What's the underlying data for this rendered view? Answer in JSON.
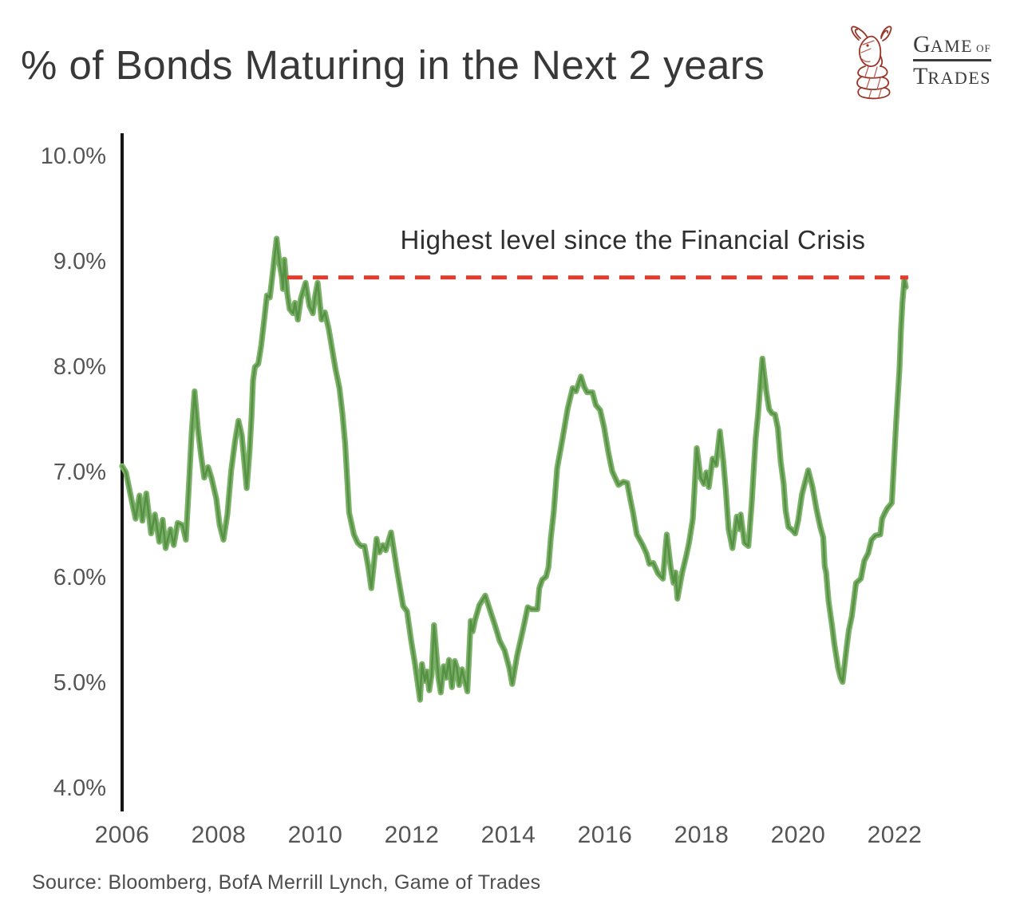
{
  "header": {
    "title": "% of Bonds Maturing in the Next 2 years"
  },
  "logo": {
    "word1_cap": "G",
    "word1_rest": "AME",
    "word_of": "OF",
    "word2_cap": "T",
    "word2_rest": "RADES",
    "bull_color": "#9a3528"
  },
  "annotation": {
    "text": "Highest level since the Financial Crisis"
  },
  "source": {
    "text": "Source: Bloomberg, BofA Merrill Lynch, Game of Trades"
  },
  "colors": {
    "line_outer": "#7ab167",
    "line_core": "#569146",
    "threshold_red": "#e23b2b",
    "axis": "#151515",
    "tick_text": "#555555"
  },
  "chart_data": {
    "type": "line",
    "title": "% of Bonds Maturing in the Next 2 years",
    "xlabel": "",
    "ylabel": "",
    "grid": false,
    "legend": "none",
    "xlim": [
      2006,
      2022.45
    ],
    "ylim": [
      3.8,
      10.2
    ],
    "x_ticks": [
      {
        "year": 2006,
        "label": "2006"
      },
      {
        "year": 2008,
        "label": "2008"
      },
      {
        "year": 2010,
        "label": "2010"
      },
      {
        "year": 2012,
        "label": "2012"
      },
      {
        "year": 2014,
        "label": "2014"
      },
      {
        "year": 2016,
        "label": "2016"
      },
      {
        "year": 2018,
        "label": "2018"
      },
      {
        "year": 2020,
        "label": "2020"
      },
      {
        "year": 2022,
        "label": "2022"
      }
    ],
    "y_ticks": [
      {
        "value": 10.0,
        "label": "10.0%"
      },
      {
        "value": 9.0,
        "label": "9.0%"
      },
      {
        "value": 8.0,
        "label": "8.0%"
      },
      {
        "value": 7.0,
        "label": "7.0%"
      },
      {
        "value": 6.0,
        "label": "6.0%"
      },
      {
        "value": 5.0,
        "label": "5.0%"
      },
      {
        "value": 4.0,
        "label": "4.0%"
      }
    ],
    "annotation_line": {
      "text": "Highest level since the Financial Crisis",
      "value": 8.85,
      "x_start": 2009.42,
      "x_end": 2022.28,
      "style": "dashed"
    },
    "series": [
      {
        "name": "% of bonds maturing in the next 2 years",
        "points": [
          [
            2006.0,
            7.06
          ],
          [
            2006.08,
            7.0
          ],
          [
            2006.2,
            6.73
          ],
          [
            2006.28,
            6.56
          ],
          [
            2006.36,
            6.78
          ],
          [
            2006.42,
            6.54
          ],
          [
            2006.5,
            6.8
          ],
          [
            2006.6,
            6.42
          ],
          [
            2006.68,
            6.6
          ],
          [
            2006.77,
            6.34
          ],
          [
            2006.84,
            6.55
          ],
          [
            2006.9,
            6.28
          ],
          [
            2007.0,
            6.46
          ],
          [
            2007.07,
            6.31
          ],
          [
            2007.15,
            6.52
          ],
          [
            2007.25,
            6.5
          ],
          [
            2007.32,
            6.36
          ],
          [
            2007.38,
            6.85
          ],
          [
            2007.44,
            7.37
          ],
          [
            2007.5,
            7.77
          ],
          [
            2007.57,
            7.41
          ],
          [
            2007.63,
            7.18
          ],
          [
            2007.7,
            6.95
          ],
          [
            2007.78,
            7.05
          ],
          [
            2007.85,
            6.95
          ],
          [
            2007.95,
            6.75
          ],
          [
            2008.02,
            6.5
          ],
          [
            2008.1,
            6.36
          ],
          [
            2008.18,
            6.6
          ],
          [
            2008.26,
            7.02
          ],
          [
            2008.34,
            7.3
          ],
          [
            2008.41,
            7.49
          ],
          [
            2008.48,
            7.35
          ],
          [
            2008.54,
            7.05
          ],
          [
            2008.58,
            6.85
          ],
          [
            2008.64,
            7.2
          ],
          [
            2008.68,
            7.52
          ],
          [
            2008.71,
            7.87
          ],
          [
            2008.75,
            8.0
          ],
          [
            2008.82,
            8.03
          ],
          [
            2008.88,
            8.2
          ],
          [
            2008.93,
            8.4
          ],
          [
            2009.0,
            8.68
          ],
          [
            2009.06,
            8.66
          ],
          [
            2009.12,
            8.9
          ],
          [
            2009.2,
            9.22
          ],
          [
            2009.26,
            8.98
          ],
          [
            2009.31,
            8.85
          ],
          [
            2009.33,
            8.74
          ],
          [
            2009.36,
            9.02
          ],
          [
            2009.42,
            8.7
          ],
          [
            2009.47,
            8.55
          ],
          [
            2009.54,
            8.51
          ],
          [
            2009.58,
            8.61
          ],
          [
            2009.64,
            8.45
          ],
          [
            2009.7,
            8.65
          ],
          [
            2009.8,
            8.8
          ],
          [
            2009.88,
            8.58
          ],
          [
            2009.95,
            8.51
          ],
          [
            2010.0,
            8.68
          ],
          [
            2010.05,
            8.8
          ],
          [
            2010.13,
            8.45
          ],
          [
            2010.2,
            8.52
          ],
          [
            2010.28,
            8.36
          ],
          [
            2010.36,
            8.14
          ],
          [
            2010.42,
            7.98
          ],
          [
            2010.5,
            7.8
          ],
          [
            2010.56,
            7.57
          ],
          [
            2010.62,
            7.27
          ],
          [
            2010.7,
            6.62
          ],
          [
            2010.8,
            6.41
          ],
          [
            2010.88,
            6.33
          ],
          [
            2010.95,
            6.3
          ],
          [
            2011.02,
            6.3
          ],
          [
            2011.1,
            6.1
          ],
          [
            2011.16,
            5.9
          ],
          [
            2011.27,
            6.37
          ],
          [
            2011.33,
            6.24
          ],
          [
            2011.4,
            6.31
          ],
          [
            2011.46,
            6.26
          ],
          [
            2011.57,
            6.43
          ],
          [
            2011.7,
            6.05
          ],
          [
            2011.82,
            5.73
          ],
          [
            2011.9,
            5.68
          ],
          [
            2011.98,
            5.42
          ],
          [
            2012.07,
            5.17
          ],
          [
            2012.17,
            4.84
          ],
          [
            2012.21,
            5.18
          ],
          [
            2012.27,
            5.02
          ],
          [
            2012.31,
            5.11
          ],
          [
            2012.36,
            4.93
          ],
          [
            2012.41,
            5.08
          ],
          [
            2012.46,
            5.55
          ],
          [
            2012.55,
            5.05
          ],
          [
            2012.6,
            4.91
          ],
          [
            2012.66,
            5.16
          ],
          [
            2012.71,
            5.05
          ],
          [
            2012.77,
            5.22
          ],
          [
            2012.83,
            4.96
          ],
          [
            2012.89,
            5.21
          ],
          [
            2012.93,
            5.15
          ],
          [
            2012.98,
            4.98
          ],
          [
            2013.04,
            5.13
          ],
          [
            2013.1,
            5.02
          ],
          [
            2013.15,
            4.92
          ],
          [
            2013.22,
            5.59
          ],
          [
            2013.26,
            5.49
          ],
          [
            2013.31,
            5.6
          ],
          [
            2013.4,
            5.74
          ],
          [
            2013.52,
            5.83
          ],
          [
            2013.62,
            5.69
          ],
          [
            2013.72,
            5.55
          ],
          [
            2013.82,
            5.4
          ],
          [
            2013.92,
            5.31
          ],
          [
            2014.02,
            5.14
          ],
          [
            2014.08,
            4.99
          ],
          [
            2014.18,
            5.26
          ],
          [
            2014.3,
            5.5
          ],
          [
            2014.4,
            5.72
          ],
          [
            2014.48,
            5.7
          ],
          [
            2014.6,
            5.7
          ],
          [
            2014.64,
            5.9
          ],
          [
            2014.7,
            5.98
          ],
          [
            2014.78,
            6.01
          ],
          [
            2014.83,
            6.1
          ],
          [
            2014.88,
            6.38
          ],
          [
            2014.94,
            6.63
          ],
          [
            2015.01,
            7.04
          ],
          [
            2015.12,
            7.32
          ],
          [
            2015.23,
            7.61
          ],
          [
            2015.33,
            7.8
          ],
          [
            2015.4,
            7.77
          ],
          [
            2015.5,
            7.91
          ],
          [
            2015.57,
            7.81
          ],
          [
            2015.63,
            7.76
          ],
          [
            2015.74,
            7.76
          ],
          [
            2015.81,
            7.64
          ],
          [
            2015.9,
            7.59
          ],
          [
            2015.98,
            7.43
          ],
          [
            2016.07,
            7.19
          ],
          [
            2016.15,
            7.01
          ],
          [
            2016.23,
            6.93
          ],
          [
            2016.28,
            6.88
          ],
          [
            2016.38,
            6.91
          ],
          [
            2016.46,
            6.9
          ],
          [
            2016.53,
            6.73
          ],
          [
            2016.58,
            6.62
          ],
          [
            2016.66,
            6.41
          ],
          [
            2016.72,
            6.36
          ],
          [
            2016.78,
            6.31
          ],
          [
            2016.86,
            6.23
          ],
          [
            2016.92,
            6.13
          ],
          [
            2017.0,
            6.14
          ],
          [
            2017.1,
            6.04
          ],
          [
            2017.2,
            5.99
          ],
          [
            2017.28,
            6.41
          ],
          [
            2017.36,
            6.1
          ],
          [
            2017.42,
            5.95
          ],
          [
            2017.46,
            6.05
          ],
          [
            2017.5,
            5.8
          ],
          [
            2017.6,
            6.05
          ],
          [
            2017.68,
            6.2
          ],
          [
            2017.74,
            6.33
          ],
          [
            2017.82,
            6.56
          ],
          [
            2017.9,
            7.23
          ],
          [
            2017.98,
            6.95
          ],
          [
            2018.05,
            6.89
          ],
          [
            2018.1,
            7.0
          ],
          [
            2018.15,
            6.86
          ],
          [
            2018.23,
            7.13
          ],
          [
            2018.3,
            7.07
          ],
          [
            2018.38,
            7.39
          ],
          [
            2018.45,
            7.11
          ],
          [
            2018.5,
            6.84
          ],
          [
            2018.56,
            6.46
          ],
          [
            2018.64,
            6.28
          ],
          [
            2018.7,
            6.48
          ],
          [
            2018.73,
            6.58
          ],
          [
            2018.79,
            6.46
          ],
          [
            2018.81,
            6.6
          ],
          [
            2018.89,
            6.33
          ],
          [
            2018.97,
            6.3
          ],
          [
            2019.04,
            6.71
          ],
          [
            2019.09,
            7.09
          ],
          [
            2019.12,
            7.32
          ],
          [
            2019.17,
            7.55
          ],
          [
            2019.26,
            8.08
          ],
          [
            2019.34,
            7.77
          ],
          [
            2019.4,
            7.6
          ],
          [
            2019.46,
            7.56
          ],
          [
            2019.52,
            7.55
          ],
          [
            2019.58,
            7.42
          ],
          [
            2019.64,
            7.1
          ],
          [
            2019.7,
            6.89
          ],
          [
            2019.74,
            6.64
          ],
          [
            2019.8,
            6.48
          ],
          [
            2019.86,
            6.46
          ],
          [
            2019.94,
            6.42
          ],
          [
            2020.0,
            6.54
          ],
          [
            2020.08,
            6.79
          ],
          [
            2020.14,
            6.9
          ],
          [
            2020.21,
            7.02
          ],
          [
            2020.3,
            6.86
          ],
          [
            2020.38,
            6.65
          ],
          [
            2020.46,
            6.48
          ],
          [
            2020.52,
            6.38
          ],
          [
            2020.55,
            6.11
          ],
          [
            2020.58,
            6.05
          ],
          [
            2020.63,
            5.78
          ],
          [
            2020.7,
            5.55
          ],
          [
            2020.75,
            5.37
          ],
          [
            2020.83,
            5.14
          ],
          [
            2020.88,
            5.05
          ],
          [
            2020.92,
            5.01
          ],
          [
            2021.0,
            5.32
          ],
          [
            2021.05,
            5.5
          ],
          [
            2021.11,
            5.63
          ],
          [
            2021.2,
            5.95
          ],
          [
            2021.3,
            5.99
          ],
          [
            2021.37,
            6.16
          ],
          [
            2021.45,
            6.23
          ],
          [
            2021.52,
            6.36
          ],
          [
            2021.6,
            6.4
          ],
          [
            2021.7,
            6.41
          ],
          [
            2021.74,
            6.56
          ],
          [
            2021.79,
            6.61
          ],
          [
            2021.85,
            6.66
          ],
          [
            2021.94,
            6.71
          ],
          [
            2022.03,
            7.47
          ],
          [
            2022.1,
            7.98
          ],
          [
            2022.13,
            8.36
          ],
          [
            2022.16,
            8.61
          ],
          [
            2022.2,
            8.83
          ],
          [
            2022.23,
            8.76
          ]
        ]
      }
    ]
  }
}
